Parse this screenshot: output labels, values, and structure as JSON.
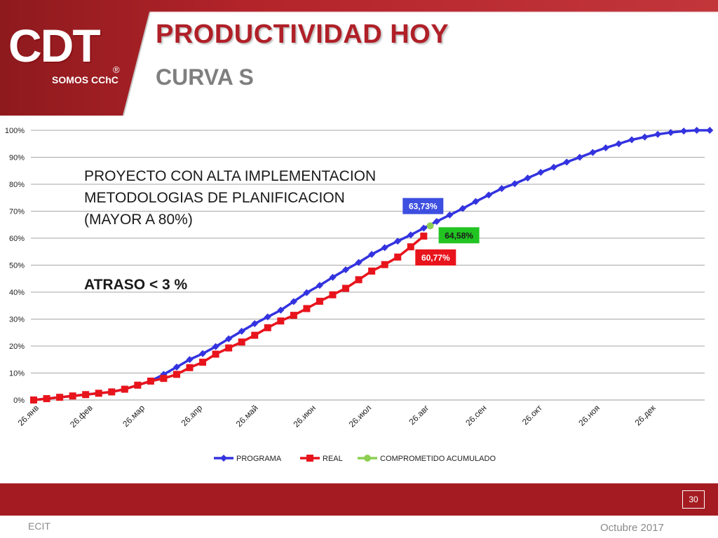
{
  "slide": {
    "title": "PRODUCTIVIDAD HOY",
    "subtitle": "CURVA S",
    "logo_text": "CDT",
    "logo_sub": "SOMOS CChC",
    "logo_mark": "®",
    "note_lines": [
      "PROYECTO CON ALTA IMPLEMENTACION",
      "METODOLOGIAS DE PLANIFICACION",
      "(MAYOR A 80%)"
    ],
    "delay_note": "ATRASO < 3 %",
    "page_number": "30",
    "footer_left": "ECIT",
    "footer_right": "Octubre 2017"
  },
  "colors": {
    "brand_red": "#a41c22",
    "programa": "#3333e0",
    "real": "#e8141c",
    "comprometido": "#8ccf52",
    "label_programa_bg": "#3d4fe0",
    "label_real_bg": "#e8141c",
    "label_comp_bg": "#22c422"
  },
  "chart_data": {
    "type": "line",
    "title": "",
    "ylim": [
      0,
      100
    ],
    "y_ticks": [
      "0%",
      "10%",
      "20%",
      "30%",
      "40%",
      "50%",
      "60%",
      "70%",
      "80%",
      "90%",
      "100%"
    ],
    "x_ticks": [
      "26.янв",
      "26.фев",
      "26.мар",
      "26.апр",
      "26.май",
      "26.июн",
      "26.июл",
      "26.авг",
      "26.сен",
      "26.окт",
      "26.ноя",
      "26.дек"
    ],
    "x_tick_weeks": [
      0,
      4.14,
      8.14,
      12.57,
      16.86,
      21.29,
      25.57,
      30,
      34.43,
      38.71,
      43.14,
      47.43
    ],
    "x_range_weeks": [
      0,
      51.5
    ],
    "legend_position": "bottom",
    "series": [
      {
        "name": "PROGRAMA",
        "marker": "diamond",
        "values": [
          0,
          0.5,
          1,
          1.5,
          2,
          2.5,
          3,
          4,
          5.5,
          7,
          9.5,
          12.2,
          15,
          17.2,
          19.8,
          22.7,
          25.5,
          28.3,
          30.8,
          33.3,
          36.5,
          39.8,
          42.5,
          45.5,
          48.3,
          51,
          54,
          56.5,
          58.9,
          61.2,
          63.73,
          66.2,
          68.6,
          71,
          73.6,
          76,
          78.4,
          80.2,
          82.3,
          84.4,
          86.3,
          88.2,
          90,
          91.8,
          93.5,
          95,
          96.5,
          97.5,
          98.5,
          99.2,
          99.7,
          100,
          100
        ]
      },
      {
        "name": "REAL",
        "marker": "square",
        "values": [
          0,
          0.5,
          1,
          1.5,
          2,
          2.5,
          3,
          4,
          5.5,
          7,
          8,
          9.5,
          12,
          14,
          17,
          19.3,
          21.5,
          24,
          26.8,
          29.3,
          31.4,
          33.9,
          36.6,
          39,
          41.4,
          44.6,
          47.8,
          50.2,
          53,
          56.8,
          60.77
        ]
      },
      {
        "name": "COMPROMETIDO ACUMULADO",
        "marker": "circle",
        "points": [
          {
            "x": 30.5,
            "y": 64.58
          }
        ]
      }
    ],
    "annotations": [
      {
        "text": "63,73%",
        "series": "PROGRAMA"
      },
      {
        "text": "64,58%",
        "series": "COMPROMETIDO ACUMULADO"
      },
      {
        "text": "60,77%",
        "series": "REAL"
      }
    ]
  }
}
